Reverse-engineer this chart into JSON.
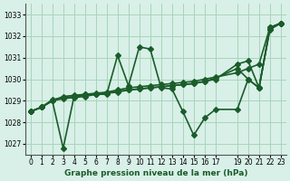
{
  "title": "Graphe pression niveau de la mer (hPa)",
  "bg_color": "#d8f0e8",
  "grid_color": "#aad4bb",
  "line_color": "#1a5c2a",
  "xlim": [
    -0.5,
    23.5
  ],
  "ylim": [
    1026.5,
    1033.5
  ],
  "yticks": [
    1027,
    1028,
    1029,
    1030,
    1031,
    1032,
    1033
  ],
  "xticks": [
    0,
    1,
    2,
    3,
    4,
    5,
    6,
    7,
    8,
    9,
    10,
    11,
    12,
    13,
    14,
    15,
    16,
    17,
    19,
    20,
    21,
    22,
    23
  ],
  "series": [
    {
      "x": [
        0,
        1,
        2,
        3,
        4,
        5,
        6,
        7,
        8,
        9,
        10,
        11,
        12,
        13,
        14,
        15,
        16,
        17,
        19,
        20,
        21,
        22,
        23
      ],
      "y": [
        1028.5,
        1028.7,
        1029.0,
        1026.8,
        1029.2,
        1029.3,
        1029.3,
        1029.3,
        1031.1,
        1029.7,
        1031.5,
        1031.4,
        1029.6,
        1029.55,
        1028.5,
        1027.4,
        1028.2,
        1028.6,
        1028.6,
        1030.0,
        1029.6,
        1032.4,
        1032.6
      ]
    },
    {
      "x": [
        0,
        1,
        2,
        3,
        4,
        5,
        6,
        7,
        8,
        9,
        10,
        11,
        12,
        13,
        14,
        15,
        16,
        17,
        19,
        20,
        21,
        22,
        23
      ],
      "y": [
        1028.5,
        1028.7,
        1029.0,
        1029.2,
        1029.25,
        1029.3,
        1029.35,
        1029.4,
        1029.5,
        1029.6,
        1029.65,
        1029.7,
        1029.75,
        1029.8,
        1029.85,
        1029.9,
        1030.0,
        1030.1,
        1030.3,
        1030.5,
        1030.7,
        1032.4,
        1032.6
      ]
    },
    {
      "x": [
        0,
        1,
        2,
        3,
        4,
        5,
        6,
        7,
        8,
        9,
        10,
        11,
        12,
        13,
        14,
        15,
        16,
        17,
        19,
        20,
        21,
        22,
        23
      ],
      "y": [
        1028.5,
        1028.7,
        1029.0,
        1029.1,
        1029.15,
        1029.2,
        1029.3,
        1029.35,
        1029.4,
        1029.5,
        1029.55,
        1029.6,
        1029.65,
        1029.7,
        1029.75,
        1029.8,
        1029.9,
        1030.0,
        1030.7,
        1030.85,
        1029.6,
        1032.35,
        1032.6
      ]
    },
    {
      "x": [
        0,
        1,
        2,
        3,
        4,
        5,
        6,
        7,
        8,
        9,
        10,
        11,
        12,
        13,
        14,
        15,
        16,
        17,
        19,
        20,
        21,
        22,
        23
      ],
      "y": [
        1028.5,
        1028.7,
        1029.05,
        1029.15,
        1029.2,
        1029.25,
        1029.3,
        1029.35,
        1029.45,
        1029.5,
        1029.55,
        1029.6,
        1029.65,
        1029.7,
        1029.75,
        1029.8,
        1029.9,
        1030.05,
        1030.5,
        1030.0,
        1029.6,
        1032.3,
        1032.6
      ]
    }
  ],
  "marker_size": 3,
  "line_width": 1.2
}
